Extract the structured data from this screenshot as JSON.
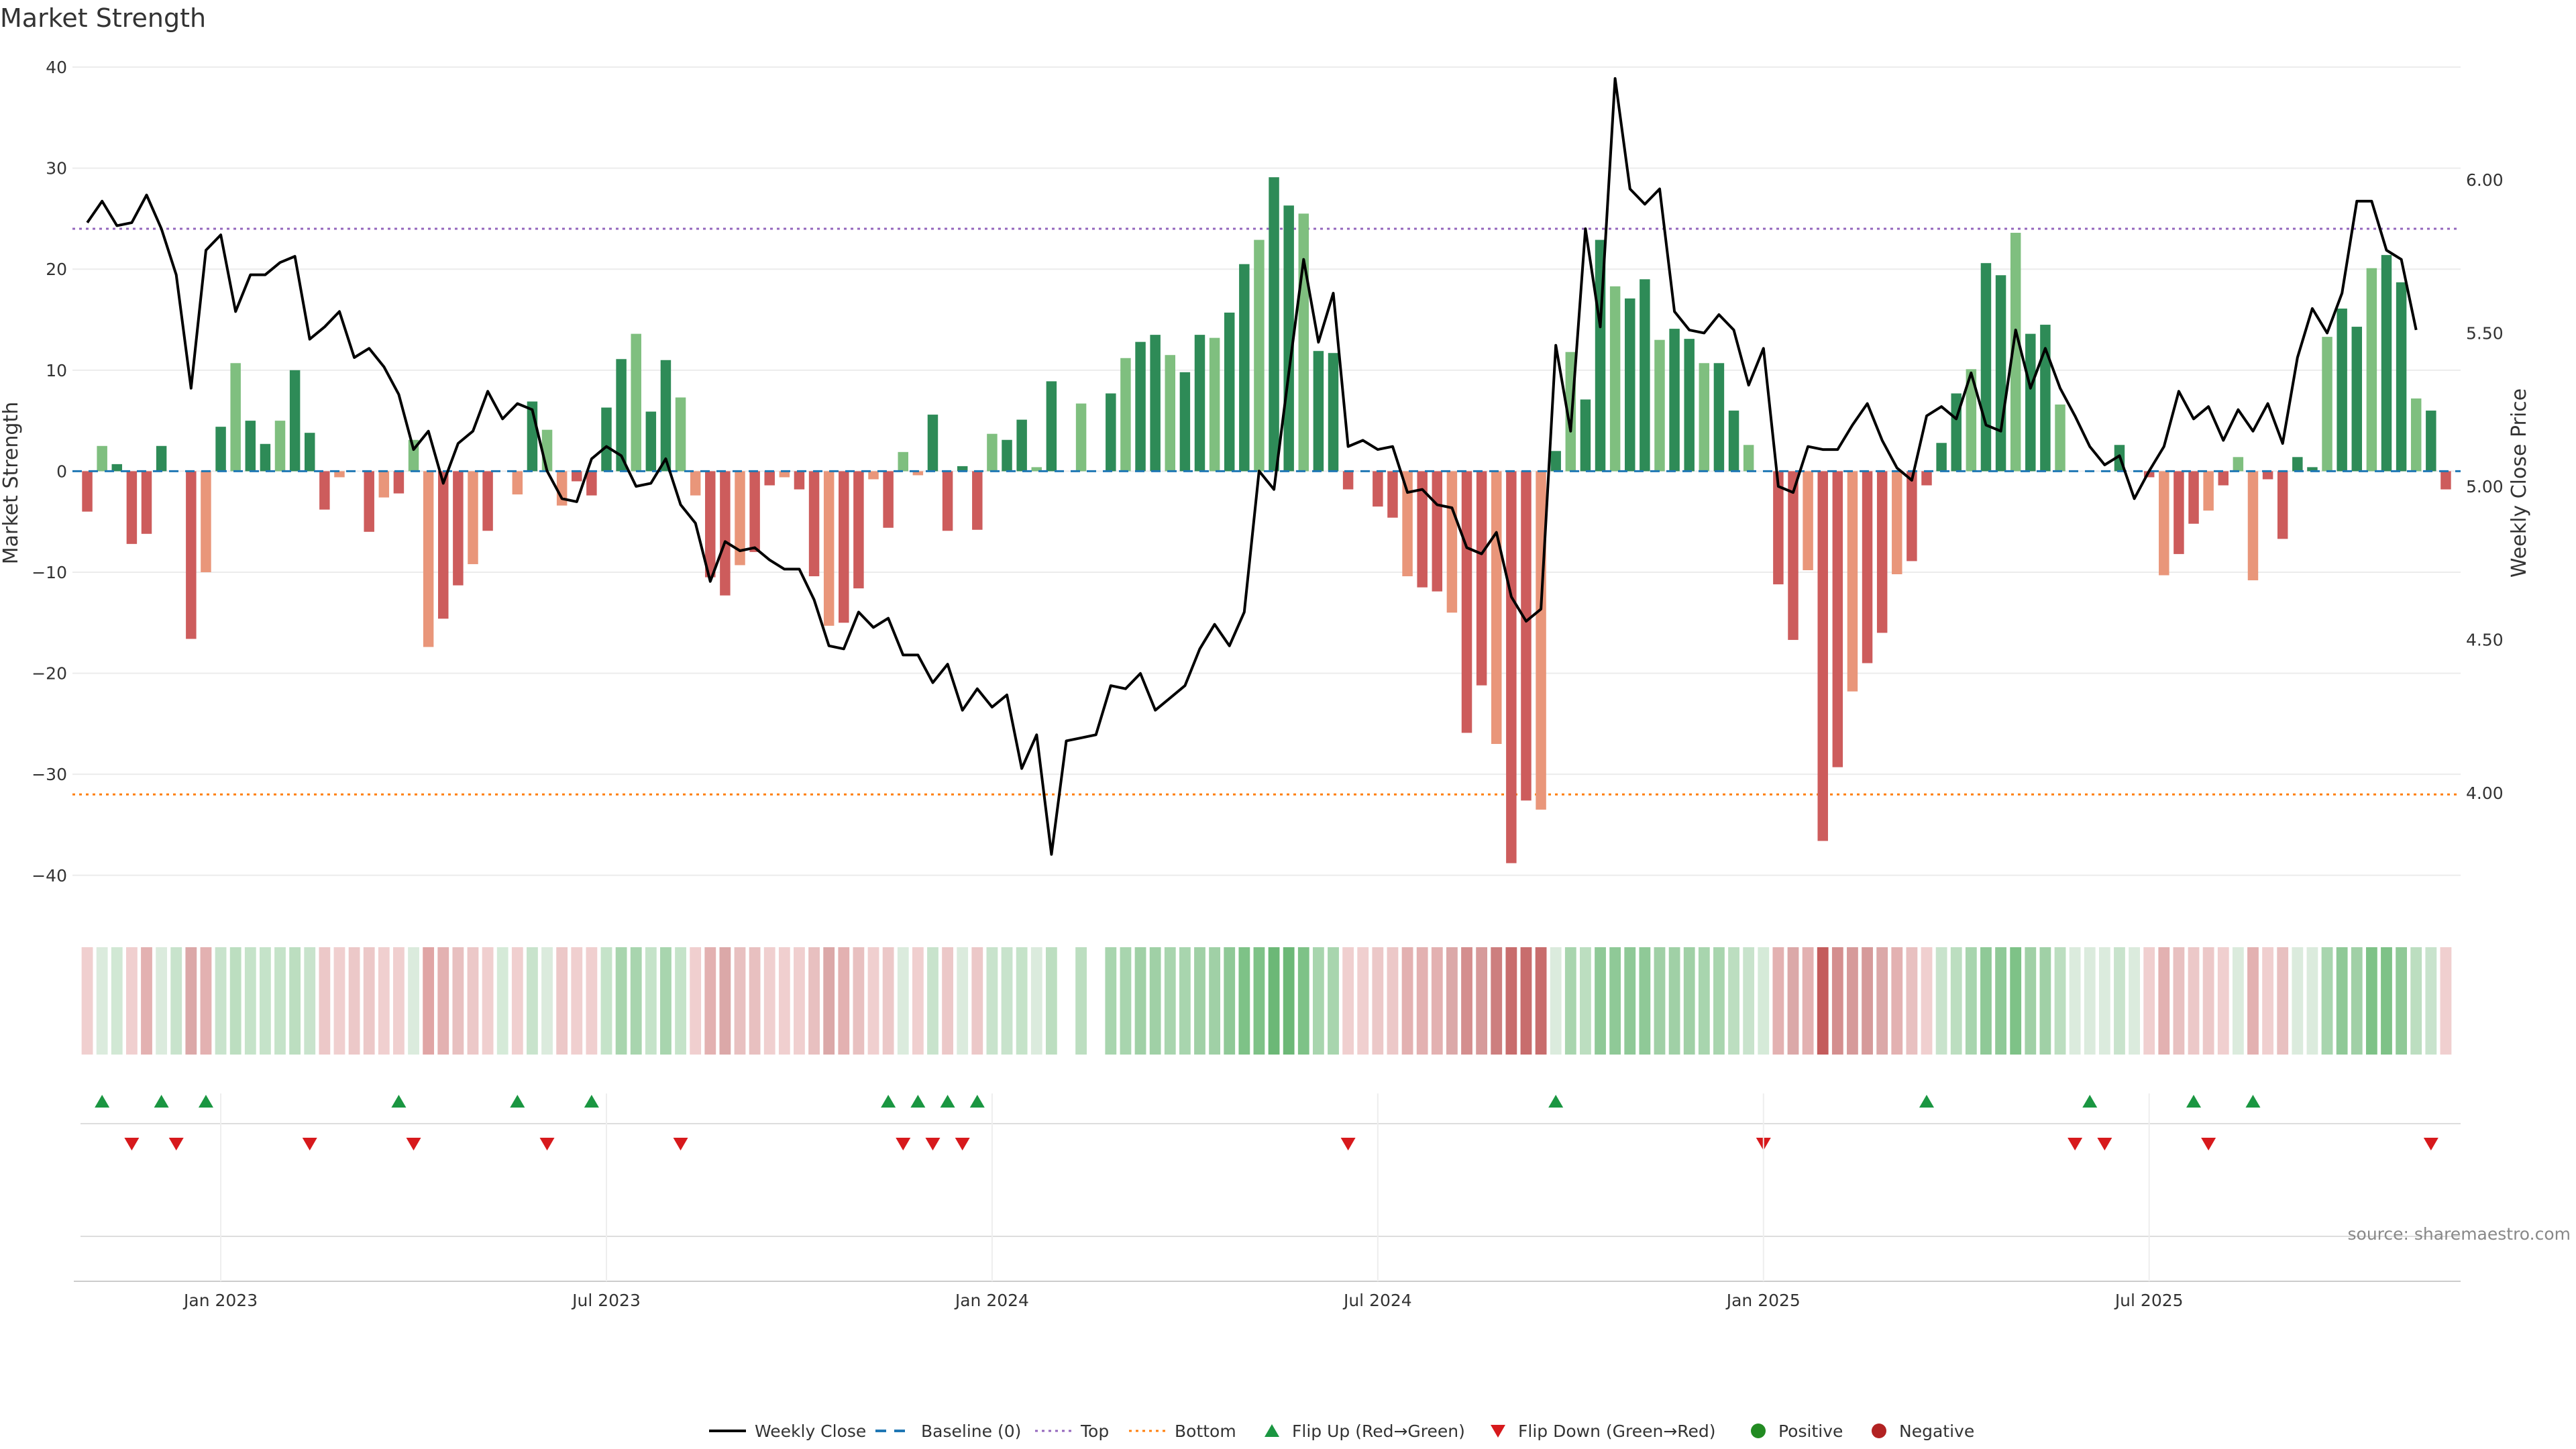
{
  "chart_data": {
    "type": "bar",
    "title": "Market Strength",
    "ylabel_left": "Market Strength",
    "ylabel_right": "Weekly Close Price",
    "source": "source: sharemaestro.com",
    "ylim_left": [
      -44,
      41
    ],
    "yticks_left": [
      -40,
      -30,
      -20,
      -10,
      0,
      10,
      20,
      30,
      40
    ],
    "ytick_labels_left": [
      "−40",
      "−30",
      "−20",
      "−10",
      "0",
      "10",
      "20",
      "30",
      "40"
    ],
    "ylim_right": [
      3.6,
      6.4
    ],
    "yticks_right": [
      4.0,
      4.5,
      5.0,
      5.5,
      6.0
    ],
    "ytick_labels_right": [
      "4.00",
      "4.50",
      "5.00",
      "5.50",
      "6.00"
    ],
    "top_threshold": 24,
    "bottom_threshold": -32,
    "x_tick_labels": [
      "Jan 2023",
      "Jul 2023",
      "Jan 2024",
      "Jul 2024",
      "Jan 2025",
      "Jul 2025"
    ],
    "x_tick_week_index": [
      9,
      35,
      61,
      87,
      113,
      139
    ],
    "strength": [
      -4,
      2.5,
      0.7,
      -7.2,
      -6.2,
      2.5,
      0,
      -16.6,
      -10,
      4.4,
      10.7,
      5,
      2.7,
      5,
      10,
      3.8,
      -3.8,
      -0.6,
      0,
      -6,
      -2.6,
      -2.2,
      3.1,
      -17.4,
      -14.6,
      -11.3,
      -9.2,
      -5.9,
      0,
      -2.3,
      6.9,
      4.1,
      -3.4,
      -1,
      -2.4,
      6.3,
      11.1,
      13.6,
      5.9,
      11,
      7.3,
      -2.4,
      -10.5,
      -12.3,
      -9.3,
      -8,
      -1.4,
      -0.6,
      -1.8,
      -10.4,
      -15.3,
      -15,
      -11.6,
      -0.8,
      -5.6,
      1.9,
      -0.4,
      5.6,
      -5.9,
      0.5,
      -5.8,
      3.7,
      3.1,
      5.1,
      0.4,
      8.9,
      0,
      6.7,
      0,
      7.7,
      11.2,
      12.8,
      13.5,
      11.5,
      9.8,
      13.5,
      13.2,
      15.7,
      20.5,
      22.9,
      29.1,
      26.3,
      25.5,
      11.9,
      11.7,
      -1.8,
      0,
      -3.5,
      -4.6,
      -10.4,
      -11.5,
      -11.9,
      -14,
      -25.9,
      -21.2,
      -27,
      -38.8,
      -32.6,
      -33.5,
      2,
      11.8,
      7.1,
      22.9,
      18.3,
      17.1,
      19,
      13,
      14.1,
      13.1,
      10.7,
      10.7,
      6,
      2.6,
      0,
      -11.2,
      -16.7,
      -9.8,
      -36.6,
      -29.3,
      -21.8,
      -19,
      -16,
      -10.2,
      -8.9,
      -1.4,
      2.8,
      7.7,
      10.1,
      20.6,
      19.4,
      23.6,
      13.6,
      14.5,
      6.6,
      0,
      0,
      0,
      2.6,
      0,
      -0.6,
      -10.3,
      -8.2,
      -5.2,
      -3.9,
      -1.4,
      1.4,
      -10.8,
      -0.8,
      -6.7,
      1.4,
      0.4,
      13.3,
      16.1,
      14.3,
      20.1,
      21.4,
      18.7,
      7.2,
      6,
      -1.8
    ],
    "weekly_close": [
      5.86,
      5.93,
      5.85,
      5.86,
      5.95,
      5.84,
      5.69,
      5.32,
      5.77,
      5.82,
      5.57,
      5.69,
      5.69,
      5.73,
      5.75,
      5.48,
      5.52,
      5.57,
      5.42,
      5.45,
      5.39,
      5.3,
      5.12,
      5.18,
      5.01,
      5.14,
      5.18,
      5.31,
      5.22,
      5.27,
      5.25,
      5.05,
      4.96,
      4.95,
      5.09,
      5.13,
      5.1,
      5.0,
      5.01,
      5.09,
      4.94,
      4.88,
      4.69,
      4.82,
      4.79,
      4.8,
      4.76,
      4.73,
      4.73,
      4.63,
      4.48,
      4.47,
      4.59,
      4.54,
      4.57,
      4.45,
      4.45,
      4.36,
      4.42,
      4.27,
      4.34,
      4.28,
      4.32,
      4.08,
      4.19,
      3.8,
      4.17,
      4.18,
      4.19,
      4.35,
      4.34,
      4.39,
      4.27,
      4.31,
      4.35,
      4.47,
      4.55,
      4.48,
      4.59,
      5.05,
      4.99,
      5.37,
      5.74,
      5.47,
      5.63,
      5.13,
      5.15,
      5.12,
      5.13,
      4.98,
      4.99,
      4.94,
      4.93,
      4.8,
      4.78,
      4.85,
      4.64,
      4.56,
      4.6,
      5.46,
      5.18,
      5.84,
      5.52,
      6.33,
      5.97,
      5.92,
      5.97,
      5.57,
      5.51,
      5.5,
      5.56,
      5.51,
      5.33,
      5.45,
      5.0,
      4.98,
      5.13,
      5.12,
      5.12,
      5.2,
      5.27,
      5.15,
      5.06,
      5.02,
      5.23,
      5.26,
      5.22,
      5.37,
      5.2,
      5.18,
      5.51,
      5.32,
      5.45,
      5.32,
      5.23,
      5.13,
      5.07,
      5.1,
      4.96,
      5.05,
      5.13,
      5.31,
      5.22,
      5.26,
      5.15,
      5.25,
      5.18,
      5.27,
      5.14,
      5.42,
      5.58,
      5.5,
      5.63,
      5.93,
      5.93,
      5.77,
      5.74,
      5.51
    ],
    "blend_column_colors": [
      "#f0cfcf",
      "#dbebdd",
      "#d1e8d4",
      "#f0cfcf",
      "#e3b1b1",
      "#dbebdd",
      "#c8e3cc",
      "#dba8a8",
      "#e3b1b1",
      "#c8e3cc",
      "#bcdec0",
      "#c5e3c9",
      "#c5e3c9",
      "#c5e3c9",
      "#bcdec0",
      "#c8e3cc",
      "#ecc8c8",
      "#f0cfcf",
      "#ecc8c8",
      "#ecc8c8",
      "#f0cfcf",
      "#f0cfcf",
      "#dbebdd",
      "#e0a5a5",
      "#e3b1b1",
      "#e8c0c0",
      "#ecc8c8",
      "#f0cfcf",
      "#d5ead8",
      "#f0cfcf",
      "#c8e3cc",
      "#dbebdd",
      "#ecc8c8",
      "#f0cfcf",
      "#f0cfcf",
      "#c5e3c9",
      "#a8d5ae",
      "#a8d5ae",
      "#c5e3c9",
      "#a8d5ae",
      "#c5e3c9",
      "#f0cfcf",
      "#e3b1b1",
      "#dba8a8",
      "#e8c0c0",
      "#e8c0c0",
      "#f0cfcf",
      "#f0cfcf",
      "#f0cfcf",
      "#e8c0c0",
      "#dba8a8",
      "#e3b1b1",
      "#e8c0c0",
      "#f0cfcf",
      "#ecc8c8",
      "#dbebdd",
      "#f0cfcf",
      "#c8e3cc",
      "#ecc8c8",
      "#dbebdd",
      "#ecc8c8",
      "#c8e3cc",
      "#c8e3cc",
      "#c5e3c9",
      "#dbebdd",
      "#bcdec0",
      "#ffffff",
      "#bcdec0",
      "#ffffff",
      "#a8d5ae",
      "#a8d5ae",
      "#a0d0a6",
      "#a0d0a6",
      "#a8d5ae",
      "#a8d5ae",
      "#a0d0a6",
      "#a0d0a6",
      "#8fc997",
      "#7ec287",
      "#7ec287",
      "#6cb877",
      "#6cb877",
      "#7ec287",
      "#a8d5ae",
      "#a8d5ae",
      "#f0cfcf",
      "#f0cfcf",
      "#ecc8c8",
      "#ecc8c8",
      "#e3b1b1",
      "#e3b1b1",
      "#e3b1b1",
      "#dba8a8",
      "#d48e8e",
      "#d69a9a",
      "#cd7f7f",
      "#c86d6d",
      "#c86d6d",
      "#c86d6d",
      "#dbebdd",
      "#a8d5ae",
      "#bcdec0",
      "#8fc997",
      "#8fc997",
      "#8fc997",
      "#8fc997",
      "#a0d0a6",
      "#a0d0a6",
      "#a0d0a6",
      "#a8d5ae",
      "#a8d5ae",
      "#bcdec0",
      "#c8e3cc",
      "#d5ead8",
      "#e3b1b1",
      "#dba8a8",
      "#e3b1b1",
      "#c45c5c",
      "#d48e8e",
      "#d69a9a",
      "#d69a9a",
      "#dba8a8",
      "#e3b1b1",
      "#e8c0c0",
      "#f0cfcf",
      "#c8e3cc",
      "#bcdec0",
      "#a8d5ae",
      "#8fc997",
      "#8fc997",
      "#7ec287",
      "#a0d0a6",
      "#a0d0a6",
      "#bcdec0",
      "#dbebdd",
      "#dbebdd",
      "#dbebdd",
      "#c8e3cc",
      "#dbebdd",
      "#f0cfcf",
      "#e3b1b1",
      "#e8c0c0",
      "#ecc8c8",
      "#ecc8c8",
      "#f0cfcf",
      "#dbebdd",
      "#e3b1b1",
      "#f0cfcf",
      "#e8c0c0",
      "#dbebdd",
      "#dbebdd",
      "#a8d5ae",
      "#8fc997",
      "#a0d0a6",
      "#7ec287",
      "#7ec287",
      "#8fc997",
      "#bcdec0",
      "#c8e3cc",
      "#f0cfcf"
    ],
    "flip_up_week_index": [
      1,
      5,
      8,
      21,
      29,
      34,
      54,
      56,
      58,
      60,
      99,
      124,
      135,
      142,
      146
    ],
    "flip_down_week_index": [
      3,
      6,
      15,
      22,
      31,
      40,
      55,
      57,
      59,
      85,
      113,
      134,
      136,
      143,
      158
    ],
    "legend": [
      "Weekly Close",
      "Baseline (0)",
      "Top",
      "Bottom",
      "Flip Up (Red→Green)",
      "Flip Down (Green→Red)",
      "Positive",
      "Negative"
    ]
  },
  "colors": {
    "pos_strong": "#2e8b57",
    "pos_light": "#7fbf7f",
    "neg_strong": "#cd5c5c",
    "neg_light": "#e9967a",
    "price_line": "#000000",
    "baseline": "#1f77b4",
    "top_line": "#9467bd",
    "bottom_line": "#ff7f0e",
    "flip_up": "#1a9641",
    "flip_down": "#d7191c",
    "positive_dot": "#228b22",
    "negative_dot": "#b22222",
    "grid": "#ececec"
  }
}
